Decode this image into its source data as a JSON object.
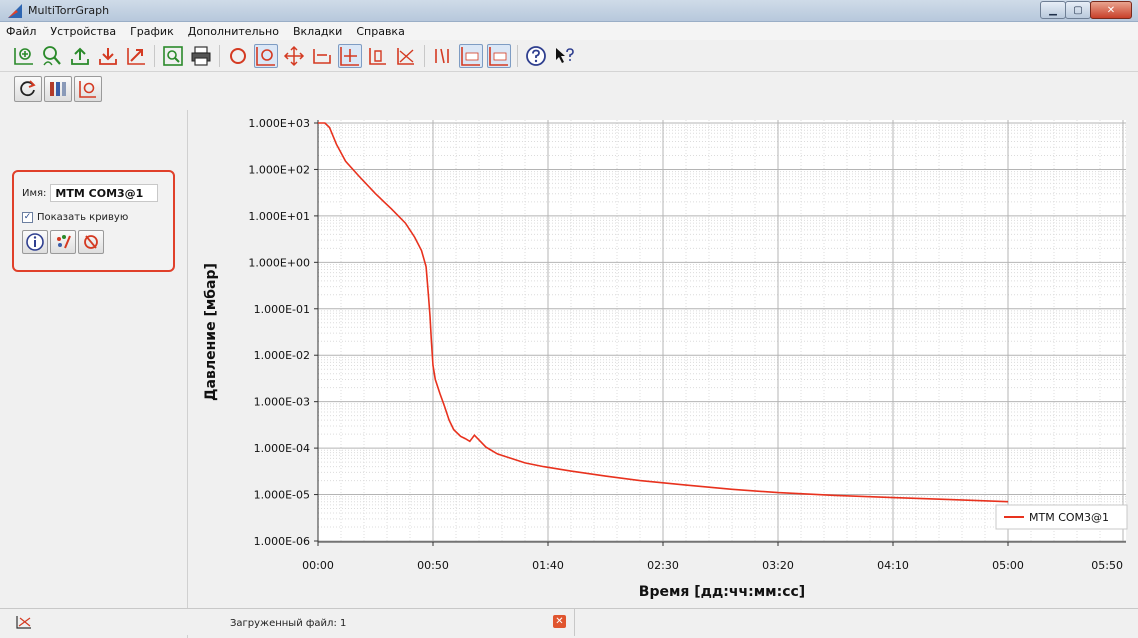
{
  "window": {
    "title": "MultiTorrGraph",
    "minimize": "▁",
    "maximize": "▢",
    "close": "✕"
  },
  "menu": [
    "Файл",
    "Устройства",
    "График",
    "Дополнительно",
    "Вкладки",
    "Справка"
  ],
  "toolbar_icons": [
    "add-curve-icon",
    "curve-search-icon",
    "upload-icon",
    "download-icon",
    "export-icon",
    "zoom-page-icon",
    "print-icon",
    "zoom-icon",
    "zoom-box-icon",
    "pan-icon",
    "fit-x-icon",
    "fit-xy-icon",
    "cursor-icon",
    "measure-icon",
    "delta-icon",
    "rel-icon",
    "log-icon",
    "help-icon",
    "whats-this-icon"
  ],
  "left_tools": [
    "refresh-icon",
    "color-table-icon",
    "zoom-box-icon"
  ],
  "curve_panel": {
    "name_label": "Имя:",
    "name_value": "MTM COM3@1",
    "show_curve_label": "Показать кривую",
    "show_curve_checked": "✓",
    "buttons": [
      "info-icon",
      "color-icon",
      "delete-curve-icon"
    ]
  },
  "status": {
    "loaded_file": "Загруженный файл: 1",
    "close": "✕"
  },
  "colors": {
    "curve": "#e8321e",
    "grid_major": "#b4b4b4",
    "grid_minor": "#dcdcdc",
    "highlight": "#e0402a"
  },
  "chart_data": {
    "type": "line",
    "xlabel": "Время [дд:чч:мм:сс]",
    "ylabel": "Давление [мбар]",
    "y_scale": "log",
    "ylim": [
      1e-06,
      1000.0
    ],
    "xlim_minutes": [
      0,
      300
    ],
    "x_ticks": [
      {
        "label": "00:00",
        "value": 0
      },
      {
        "label": "00:50",
        "value": 50
      },
      {
        "label": "01:40",
        "value": 100
      },
      {
        "label": "02:30",
        "value": 150
      },
      {
        "label": "03:20",
        "value": 200
      },
      {
        "label": "04:10",
        "value": 250
      },
      {
        "label": "05:00",
        "value": 300
      }
    ],
    "x_minor_step": 10,
    "y_ticks": [
      "1.000E+03",
      "1.000E+02",
      "1.000E+01",
      "1.000E+00",
      "1.000E-01",
      "1.000E-02",
      "1.000E-03",
      "1.000E-04",
      "1.000E-05",
      "1.000E-06"
    ],
    "grid": true,
    "legend": "bottom-right",
    "series": [
      {
        "name": "MTM COM3@1",
        "color": "#e8321e",
        "points": [
          [
            0,
            1000
          ],
          [
            3,
            1000
          ],
          [
            5,
            800
          ],
          [
            8,
            350
          ],
          [
            12,
            150
          ],
          [
            18,
            70
          ],
          [
            25,
            30
          ],
          [
            32,
            14
          ],
          [
            38,
            7
          ],
          [
            42,
            3.5
          ],
          [
            45,
            1.8
          ],
          [
            47,
            0.8
          ],
          [
            48,
            0.2
          ],
          [
            48.7,
            0.07
          ],
          [
            49.3,
            0.02
          ],
          [
            50,
            0.006
          ],
          [
            51,
            0.003
          ],
          [
            53,
            0.0015
          ],
          [
            55,
            0.0008
          ],
          [
            57,
            0.0004
          ],
          [
            59,
            0.00025
          ],
          [
            62,
            0.00018
          ],
          [
            64,
            0.00016
          ],
          [
            66,
            0.00014
          ],
          [
            68,
            0.00019
          ],
          [
            70,
            0.00015
          ],
          [
            73,
            0.000105
          ],
          [
            78,
            7.5e-05
          ],
          [
            84,
            6e-05
          ],
          [
            90,
            4.8e-05
          ],
          [
            98,
            4e-05
          ],
          [
            110,
            3.2e-05
          ],
          [
            125,
            2.5e-05
          ],
          [
            140,
            2e-05
          ],
          [
            160,
            1.6e-05
          ],
          [
            180,
            1.3e-05
          ],
          [
            200,
            1.1e-05
          ],
          [
            225,
            9.6e-06
          ],
          [
            250,
            8.6e-06
          ],
          [
            275,
            7.8e-06
          ],
          [
            300,
            7e-06
          ]
        ]
      }
    ]
  }
}
